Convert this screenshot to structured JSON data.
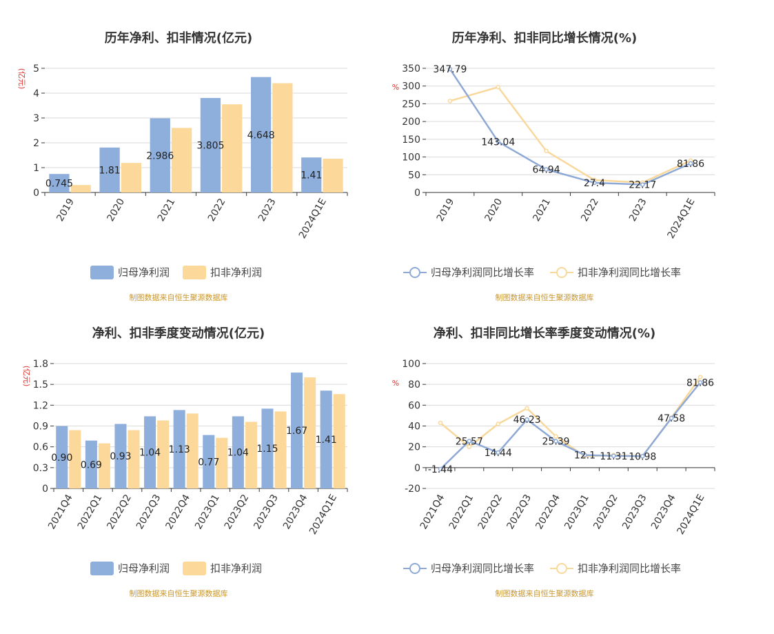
{
  "colors": {
    "series_a": "#8eaedc",
    "series_b": "#fcd89a",
    "line_a": "#8ea9d6",
    "line_b": "#f9d89c",
    "grid": "#d9d9d9",
    "axis": "#333333",
    "unit": "#e0322c",
    "source": "#c9962e"
  },
  "chart_data": [
    {
      "id": "c1",
      "type": "bar",
      "title": "历年净利、扣非情况(亿元)",
      "unit_label": "(亿元)",
      "categories": [
        "2019",
        "2020",
        "2021",
        "2022",
        "2023",
        "2024Q1E"
      ],
      "series": [
        {
          "name": "归母净利润",
          "values": [
            0.745,
            1.81,
            2.986,
            3.805,
            4.648,
            1.41
          ]
        },
        {
          "name": "扣非净利润",
          "values": [
            0.3,
            1.19,
            2.6,
            3.55,
            4.4,
            1.36
          ]
        }
      ],
      "data_labels": [
        "0.745",
        "1.81",
        "2.986",
        "3.805",
        "4.648",
        "1.41"
      ],
      "ylim": [
        0,
        5
      ],
      "yticks": [
        "0",
        "1",
        "2",
        "3",
        "4",
        "5"
      ],
      "ytick_values": [
        0,
        1,
        2,
        3,
        4,
        5
      ],
      "legend_position": "bottom",
      "source": "制图数据来自恒生聚源数据库",
      "grid": true
    },
    {
      "id": "c2",
      "type": "line",
      "title": "历年净利、扣非同比增长情况(%)",
      "unit_label": "%",
      "categories": [
        "2019",
        "2020",
        "2021",
        "2022",
        "2023",
        "2024Q1E"
      ],
      "series": [
        {
          "name": "归母净利润同比增长率",
          "values": [
            347.79,
            143.04,
            64.94,
            27.4,
            22.17,
            81.86
          ]
        },
        {
          "name": "扣非净利润同比增长率",
          "values": [
            258,
            297,
            117,
            35,
            28,
            90
          ]
        }
      ],
      "data_labels": [
        "347.79",
        "143.04",
        "64.94",
        "27.4",
        "22.17",
        "81.86"
      ],
      "ylim": [
        0,
        350
      ],
      "yticks": [
        "0",
        "50",
        "100",
        "150",
        "200",
        "250",
        "300",
        "350"
      ],
      "ytick_values": [
        0,
        50,
        100,
        150,
        200,
        250,
        300,
        350
      ],
      "legend_position": "bottom",
      "source": "制图数据来自恒生聚源数据库",
      "grid": true
    },
    {
      "id": "c3",
      "type": "bar",
      "title": "净利、扣非季度变动情况(亿元)",
      "unit_label": "(亿元)",
      "categories": [
        "2021Q4",
        "2022Q1",
        "2022Q2",
        "2022Q3",
        "2022Q4",
        "2023Q1",
        "2023Q2",
        "2023Q3",
        "2023Q4",
        "2024Q1E"
      ],
      "series": [
        {
          "name": "归母净利润",
          "values": [
            0.9,
            0.69,
            0.93,
            1.04,
            1.13,
            0.77,
            1.04,
            1.15,
            1.67,
            1.41
          ]
        },
        {
          "name": "扣非净利润",
          "values": [
            0.84,
            0.65,
            0.84,
            0.98,
            1.08,
            0.73,
            0.96,
            1.11,
            1.6,
            1.36
          ]
        }
      ],
      "data_labels": [
        "0.90",
        "0.69",
        "0.93",
        "1.04",
        "1.13",
        "0.77",
        "1.04",
        "1.15",
        "1.67",
        "1.41"
      ],
      "ylim": [
        0,
        1.8
      ],
      "yticks": [
        "0",
        "0.3",
        "0.6",
        "0.9",
        "1.2",
        "1.5",
        "1.8"
      ],
      "ytick_values": [
        0,
        0.3,
        0.6,
        0.9,
        1.2,
        1.5,
        1.8
      ],
      "legend_position": "bottom",
      "source": "制图数据来自恒生聚源数据库",
      "grid": true
    },
    {
      "id": "c4",
      "type": "line",
      "title": "净利、扣非同比增长率季度变动情况(%)",
      "unit_label": "%",
      "categories": [
        "2021Q4",
        "2022Q1",
        "2022Q2",
        "2022Q3",
        "2022Q4",
        "2023Q1",
        "2023Q2",
        "2023Q3",
        "2023Q4",
        "2024Q1E"
      ],
      "series": [
        {
          "name": "归母净利润同比增长率",
          "values": [
            -1.44,
            25.57,
            14.44,
            46.23,
            25.39,
            12.1,
            11.31,
            10.98,
            47.58,
            81.86
          ]
        },
        {
          "name": "扣非净利润同比增长率",
          "values": [
            43,
            20,
            42,
            57,
            30,
            11,
            12,
            11,
            48,
            87
          ]
        }
      ],
      "data_labels": [
        "-1.44",
        "25.57",
        "14.44",
        "46.23",
        "25.39",
        "12.1",
        "11.31",
        "10.98",
        "47.58",
        "81.86"
      ],
      "ylim": [
        -20,
        100
      ],
      "yticks": [
        "-20",
        "0",
        "20",
        "40",
        "60",
        "80",
        "100"
      ],
      "ytick_values": [
        -20,
        0,
        20,
        40,
        60,
        80,
        100
      ],
      "legend_position": "bottom",
      "source": "制图数据来自恒生聚源数据库",
      "grid": true
    }
  ]
}
